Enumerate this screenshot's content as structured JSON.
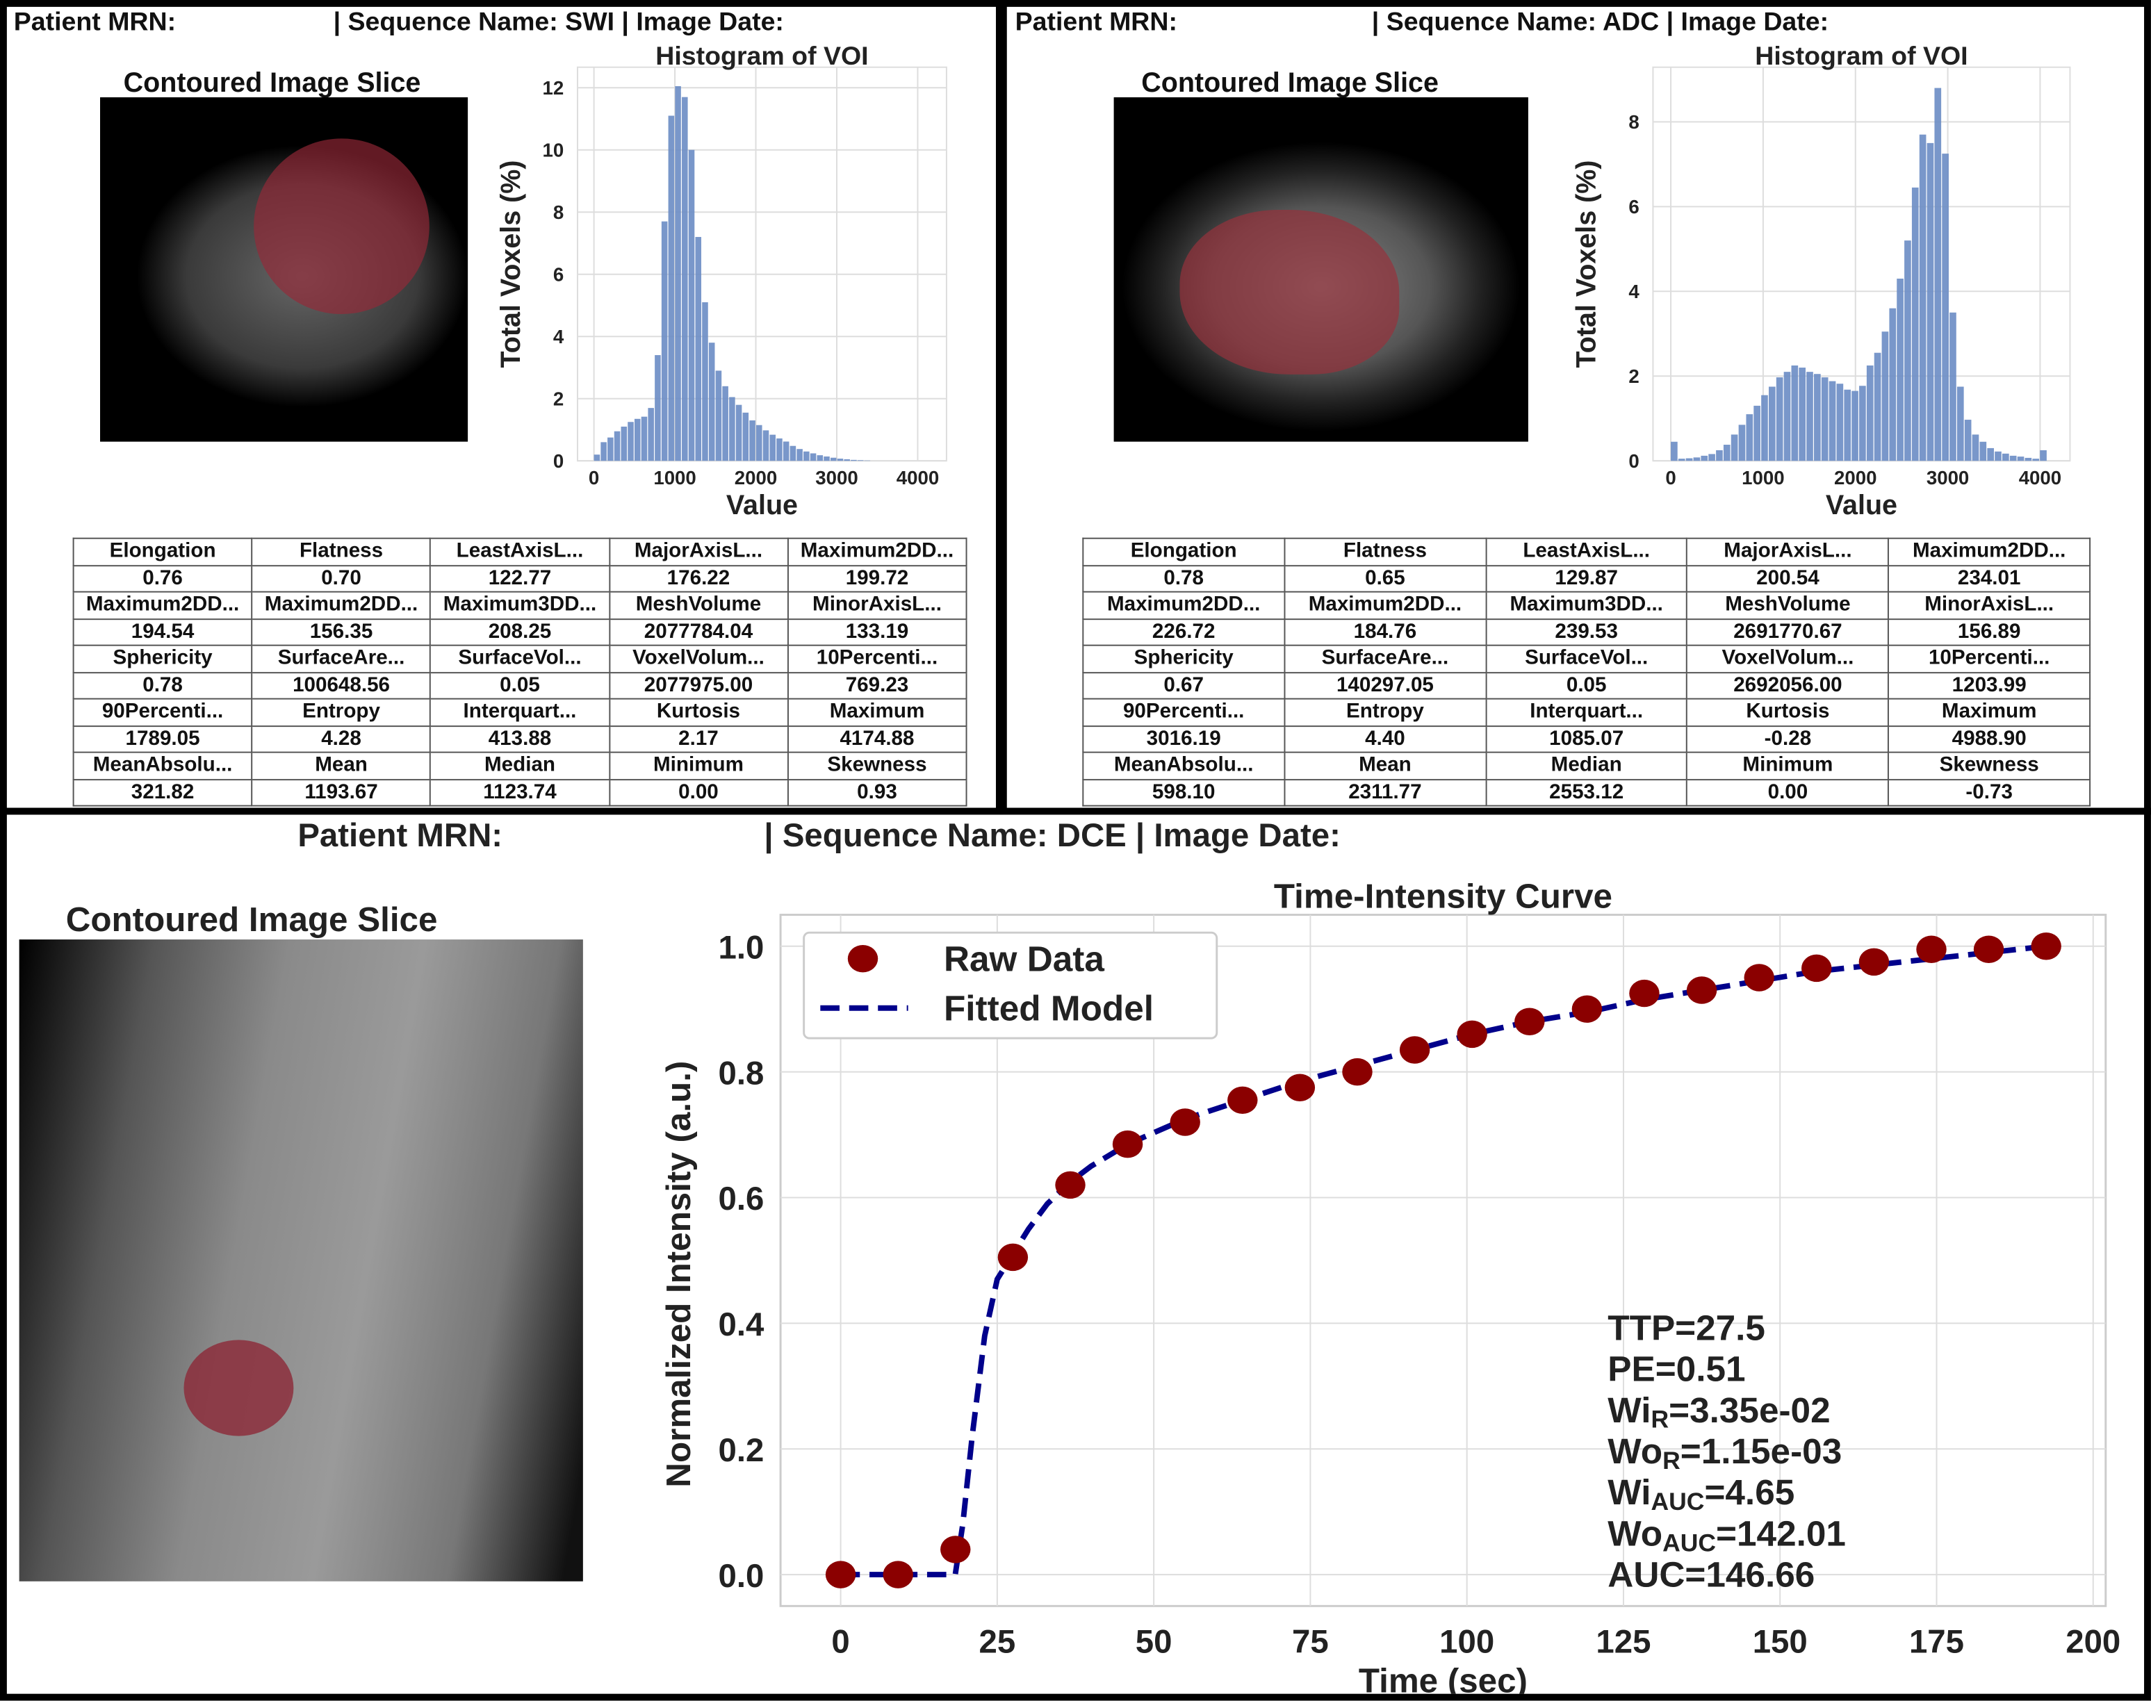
{
  "panels": {
    "swi": {
      "mrn_label": "Patient MRN:",
      "sequence_label": "| Sequence Name: SWI | Image Date:",
      "slice_title": "Contoured Image Slice",
      "table": [
        [
          "Elongation",
          "Flatness",
          "LeastAxisL...",
          "MajorAxisL...",
          "Maximum2DD..."
        ],
        [
          "0.76",
          "0.70",
          "122.77",
          "176.22",
          "199.72"
        ],
        [
          "Maximum2DD...",
          "Maximum2DD...",
          "Maximum3DD...",
          "MeshVolume",
          "MinorAxisL..."
        ],
        [
          "194.54",
          "156.35",
          "208.25",
          "2077784.04",
          "133.19"
        ],
        [
          "Sphericity",
          "SurfaceAre...",
          "SurfaceVol...",
          "VoxelVolum...",
          "10Percenti..."
        ],
        [
          "0.78",
          "100648.56",
          "0.05",
          "2077975.00",
          "769.23"
        ],
        [
          "90Percenti...",
          "Entropy",
          "Interquart...",
          "Kurtosis",
          "Maximum"
        ],
        [
          "1789.05",
          "4.28",
          "413.88",
          "2.17",
          "4174.88"
        ],
        [
          "MeanAbsolu...",
          "Mean",
          "Median",
          "Minimum",
          "Skewness"
        ],
        [
          "321.82",
          "1193.67",
          "1123.74",
          "0.00",
          "0.93"
        ]
      ]
    },
    "adc": {
      "mrn_label": "Patient MRN:",
      "sequence_label": "| Sequence Name: ADC | Image Date:",
      "slice_title": "Contoured Image Slice",
      "table": [
        [
          "Elongation",
          "Flatness",
          "LeastAxisL...",
          "MajorAxisL...",
          "Maximum2DD..."
        ],
        [
          "0.78",
          "0.65",
          "129.87",
          "200.54",
          "234.01"
        ],
        [
          "Maximum2DD...",
          "Maximum2DD...",
          "Maximum3DD...",
          "MeshVolume",
          "MinorAxisL..."
        ],
        [
          "226.72",
          "184.76",
          "239.53",
          "2691770.67",
          "156.89"
        ],
        [
          "Sphericity",
          "SurfaceAre...",
          "SurfaceVol...",
          "VoxelVolum...",
          "10Percenti..."
        ],
        [
          "0.67",
          "140297.05",
          "0.05",
          "2692056.00",
          "1203.99"
        ],
        [
          "90Percenti...",
          "Entropy",
          "Interquart...",
          "Kurtosis",
          "Maximum"
        ],
        [
          "3016.19",
          "4.40",
          "1085.07",
          "-0.28",
          "4988.90"
        ],
        [
          "MeanAbsolu...",
          "Mean",
          "Median",
          "Minimum",
          "Skewness"
        ],
        [
          "598.10",
          "2311.77",
          "2553.12",
          "0.00",
          "-0.73"
        ]
      ]
    },
    "dce": {
      "mrn_label": "Patient MRN:",
      "sequence_label": "| Sequence Name: DCE | Image Date:",
      "slice_title": "Contoured Image Slice"
    }
  },
  "chart_data": [
    {
      "id": "swi_hist",
      "type": "bar",
      "title": "Histogram of VOI",
      "xlabel": "Value",
      "ylabel": "Total Voxels (%)",
      "bin_start": 0,
      "bin_width": 83.5,
      "values": [
        0.2,
        0.6,
        0.75,
        0.95,
        1.1,
        1.25,
        1.35,
        1.42,
        1.7,
        3.4,
        7.7,
        11.1,
        12.05,
        11.7,
        10.0,
        7.2,
        5.1,
        3.8,
        2.9,
        2.4,
        2.05,
        1.8,
        1.55,
        1.3,
        1.15,
        0.98,
        0.84,
        0.72,
        0.62,
        0.48,
        0.38,
        0.3,
        0.24,
        0.18,
        0.14,
        0.1,
        0.07,
        0.05,
        0.03,
        0.02,
        0.01,
        0,
        0,
        0,
        0,
        0,
        0,
        0,
        0,
        0
      ],
      "xlim": [
        -203,
        4356
      ],
      "ylim": [
        0,
        12.66
      ],
      "xticks": [
        0,
        1000,
        2000,
        3000,
        4000
      ],
      "yticks": [
        0,
        2,
        4,
        6,
        8,
        10,
        12
      ],
      "grid": true,
      "color": "#6a8cc4"
    },
    {
      "id": "adc_hist",
      "type": "bar",
      "title": "Histogram of VOI",
      "xlabel": "Value",
      "ylabel": "Total Voxels (%)",
      "bin_start": 0,
      "bin_width": 81.6,
      "values": [
        0.45,
        0.05,
        0.06,
        0.08,
        0.12,
        0.16,
        0.25,
        0.38,
        0.62,
        0.85,
        1.1,
        1.3,
        1.55,
        1.75,
        1.97,
        2.1,
        2.25,
        2.2,
        2.1,
        2.05,
        1.97,
        1.88,
        1.82,
        1.68,
        1.65,
        1.77,
        2.25,
        2.55,
        3.05,
        3.6,
        4.3,
        5.2,
        6.45,
        7.7,
        7.5,
        8.8,
        7.25,
        3.5,
        1.75,
        0.97,
        0.62,
        0.45,
        0.3,
        0.22,
        0.17,
        0.12,
        0.1,
        0.07,
        0.05,
        0.25
      ],
      "xlim": [
        -193,
        4324
      ],
      "ylim": [
        0,
        9.29
      ],
      "xticks": [
        0,
        1000,
        2000,
        3000,
        4000
      ],
      "yticks": [
        0,
        2,
        4,
        6,
        8
      ],
      "grid": true,
      "color": "#6a8cc4"
    },
    {
      "id": "dce_tic",
      "type": "line",
      "title": "Time-Intensity Curve",
      "xlabel": "Time (sec)",
      "ylabel": "Normalized Intensity (a.u.)",
      "xlim": [
        -9.6,
        202
      ],
      "ylim": [
        -0.05,
        1.05
      ],
      "xticks": [
        0,
        25,
        50,
        75,
        100,
        125,
        150,
        175,
        200
      ],
      "yticks": [
        0.0,
        0.2,
        0.4,
        0.6,
        0.8,
        1.0
      ],
      "grid": true,
      "legend": "top-left",
      "series": [
        {
          "name": "Raw Data",
          "kind": "scatter",
          "color": "#8b0000",
          "x": [
            0,
            9.17,
            18.33,
            27.5,
            36.67,
            45.83,
            55,
            64.17,
            73.33,
            82.5,
            91.67,
            100.83,
            110,
            119.17,
            128.33,
            137.5,
            146.67,
            155.83,
            165,
            174.17,
            183.33,
            192.5
          ],
          "y": [
            0,
            0,
            0.04,
            0.505,
            0.62,
            0.685,
            0.72,
            0.755,
            0.775,
            0.8,
            0.835,
            0.86,
            0.88,
            0.9,
            0.925,
            0.93,
            0.95,
            0.965,
            0.975,
            0.995,
            0.995,
            1.0
          ]
        },
        {
          "name": "Fitted Model",
          "kind": "dashed-line",
          "color": "#00008b",
          "x": [
            0,
            18.3,
            19.5,
            21,
            23,
            25,
            27.5,
            30,
            33,
            36.67,
            40,
            45.83,
            55,
            64.17,
            73.33,
            82.5,
            91.67,
            100.83,
            110,
            119.17,
            128.33,
            137.5,
            146.67,
            155.83,
            165,
            174.17,
            183.33,
            192.5
          ],
          "y": [
            0,
            0,
            0.08,
            0.22,
            0.38,
            0.47,
            0.51,
            0.55,
            0.59,
            0.625,
            0.65,
            0.685,
            0.725,
            0.755,
            0.785,
            0.81,
            0.835,
            0.86,
            0.88,
            0.895,
            0.915,
            0.93,
            0.945,
            0.96,
            0.97,
            0.98,
            0.99,
            1.0
          ]
        }
      ],
      "annotations": [
        {
          "main": "TTP=27.5",
          "sub": "",
          "rest": ""
        },
        {
          "main": "PE=0.51",
          "sub": "",
          "rest": ""
        },
        {
          "main": "Wi",
          "sub": "R",
          "rest": "=3.35e-02"
        },
        {
          "main": "Wo",
          "sub": "R",
          "rest": "=1.15e-03"
        },
        {
          "main": "Wi",
          "sub": "AUC",
          "rest": "=4.65"
        },
        {
          "main": "Wo",
          "sub": "AUC",
          "rest": "=142.01"
        },
        {
          "main": "AUC=146.66",
          "sub": "",
          "rest": ""
        }
      ]
    }
  ]
}
